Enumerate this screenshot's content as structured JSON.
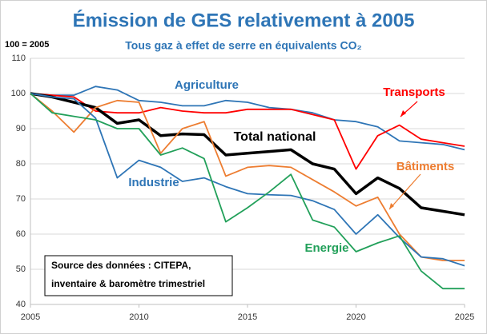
{
  "chart_data": {
    "type": "line",
    "title": "Émission de GES relativement à 2005",
    "subtitle": "Tous gaz à effet de serre en équivalents CO₂",
    "y_label": "100 = 2005",
    "annotation": [
      "Source des données : CITEPA,",
      "inventaire & baromètre trimestriel"
    ],
    "x": [
      2005,
      2006,
      2007,
      2008,
      2009,
      2010,
      2011,
      2012,
      2013,
      2014,
      2015,
      2016,
      2017,
      2018,
      2019,
      2020,
      2021,
      2022,
      2023,
      2024,
      2025
    ],
    "xlim": [
      2005,
      2025
    ],
    "xticks": [
      2005,
      2010,
      2015,
      2020,
      2025
    ],
    "ylim": [
      40,
      110
    ],
    "yticks": [
      40,
      50,
      60,
      70,
      80,
      90,
      100,
      110
    ],
    "grid": true,
    "series": [
      {
        "name": "Agriculture",
        "color": "#2e75b6",
        "values": [
          100,
          99.5,
          99.5,
          102,
          101,
          98,
          97.5,
          96.5,
          96.5,
          98,
          97.5,
          96,
          95.5,
          94.5,
          92.5,
          92,
          90.5,
          86.5,
          86,
          85.5,
          84
        ]
      },
      {
        "name": "Transports",
        "color": "#ff0000",
        "values": [
          100,
          99.5,
          99,
          95,
          94.5,
          94.5,
          96,
          95,
          94.5,
          94.5,
          95.5,
          95.5,
          95.5,
          94,
          92.5,
          78.5,
          88,
          91,
          87,
          86,
          85
        ]
      },
      {
        "name": "Total national",
        "color": "#000000",
        "values": [
          100,
          99,
          97.5,
          96,
          91.5,
          92.5,
          88,
          88.5,
          88.3,
          82.5,
          83,
          83.5,
          84,
          80,
          78.5,
          71.5,
          76,
          73,
          67.5,
          66.5,
          65.5
        ]
      },
      {
        "name": "Bâtiments",
        "color": "#ed7d31",
        "values": [
          100,
          95,
          89,
          96,
          98,
          97.5,
          83,
          90,
          92,
          76.5,
          79,
          79.5,
          79,
          75.5,
          72,
          68,
          70.5,
          60,
          53.5,
          52.5,
          52.5
        ]
      },
      {
        "name": "Industrie",
        "color": "#2e75b6",
        "values": [
          100,
          99,
          98.5,
          93,
          76,
          81,
          79,
          75,
          76,
          73.5,
          71.5,
          71.2,
          71,
          69.5,
          67,
          60,
          65.5,
          59,
          53.5,
          53,
          51
        ]
      },
      {
        "name": "Energie",
        "color": "#22a05a",
        "values": [
          100,
          94.5,
          93.5,
          92.5,
          90,
          90,
          82.5,
          84.5,
          81.5,
          63.5,
          67.5,
          72,
          77,
          64,
          62,
          55,
          57.5,
          59.5,
          49.5,
          44.5,
          44.5
        ]
      }
    ]
  }
}
